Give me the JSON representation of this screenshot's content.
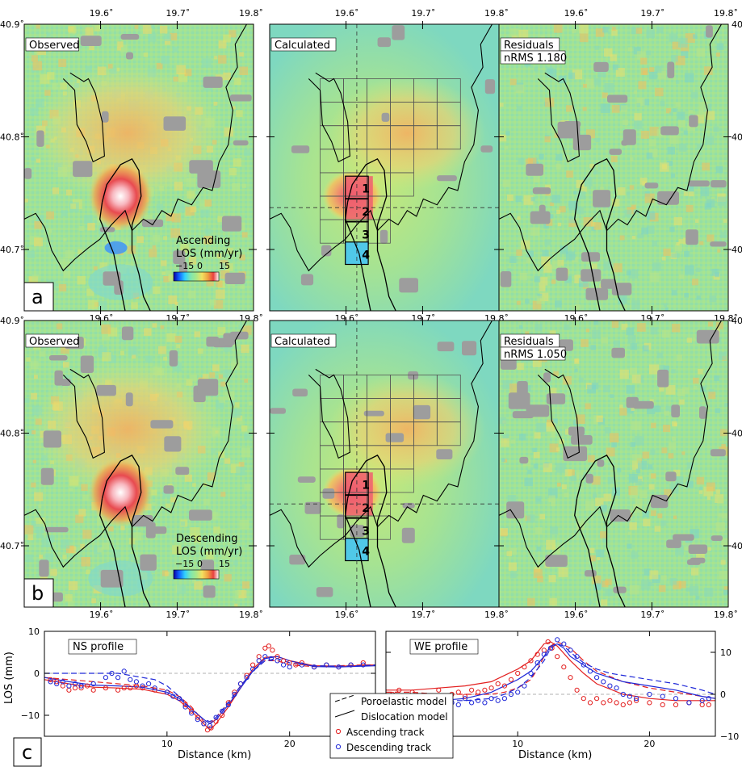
{
  "map_ticks": {
    "lon": [
      "19.6˚",
      "19.7˚",
      "19.8˚"
    ],
    "lat": [
      "40.9˚",
      "40.8˚",
      "40.7˚"
    ]
  },
  "rows": [
    {
      "letter": "a",
      "panels": [
        {
          "label": "Observed",
          "type": "observed"
        },
        {
          "label": "Calculated",
          "type": "calculated"
        },
        {
          "label": "Residuals",
          "sub": "nRMS 1.180",
          "type": "residuals"
        }
      ],
      "colorbar": {
        "title1": "Ascending",
        "title2": "LOS (mm/yr)",
        "ticks": [
          "−15",
          "0",
          "15"
        ]
      }
    },
    {
      "letter": "b",
      "panels": [
        {
          "label": "Observed",
          "type": "observed"
        },
        {
          "label": "Calculated",
          "type": "calculated"
        },
        {
          "label": "Residuals",
          "sub": "nRMS 1.050",
          "type": "residuals"
        }
      ],
      "colorbar": {
        "title1": "Descending",
        "title2": "LOS (mm/yr)",
        "ticks": [
          "−15",
          "0",
          "15"
        ]
      }
    }
  ],
  "source_numbers": [
    "1",
    "2",
    "3",
    "4"
  ],
  "colors": {
    "gray_mask": "#9d9d9d",
    "background": "#9fe29a",
    "ascending": "#e32020",
    "descending": "#1f28d8"
  },
  "chart_data": [
    {
      "type": "line",
      "letter": "c",
      "title": "NS profile",
      "xlabel": "Distance (km)",
      "ylabel": "LOS (mm)",
      "xlim": [
        0,
        27
      ],
      "ylim": [
        10,
        -15
      ],
      "x_ticks": [
        "10",
        "20"
      ],
      "y_ticks": [
        "10",
        "0",
        "−10"
      ],
      "x_tick_values": [
        10,
        20
      ],
      "y_tick_values": [
        10,
        0,
        -10
      ],
      "series": [
        {
          "name": "Poroelastic model",
          "track": "ascending",
          "style": "dashed",
          "x": [
            0,
            2,
            4,
            6,
            8,
            10,
            11,
            12,
            13,
            13.5,
            14,
            15,
            16,
            17,
            18,
            19,
            20,
            22,
            24,
            26,
            27
          ],
          "y": [
            -1,
            -1.5,
            -2,
            -2.5,
            -3,
            -4,
            -5.5,
            -8,
            -11.5,
            -12,
            -10.5,
            -7,
            -3,
            0.5,
            3,
            3,
            2,
            1.6,
            1.8,
            2,
            2
          ]
        },
        {
          "name": "Dislocation model",
          "track": "ascending",
          "style": "solid",
          "x": [
            0,
            2,
            4,
            6,
            8,
            10,
            11,
            12,
            13,
            13.5,
            14,
            15,
            16,
            17,
            18,
            19,
            20,
            22,
            24,
            26,
            27
          ],
          "y": [
            -1.5,
            -2.5,
            -3.3,
            -3.5,
            -3.8,
            -5,
            -6.5,
            -9,
            -12,
            -13.5,
            -12,
            -8,
            -3.5,
            1,
            3.8,
            4,
            3,
            1.8,
            1.7,
            1.9,
            2
          ]
        },
        {
          "name": "Poroelastic model",
          "track": "descending",
          "style": "dashed",
          "x": [
            0,
            2,
            4,
            6,
            8,
            9,
            10,
            11,
            12,
            13,
            13.5,
            14,
            15,
            16,
            17,
            18,
            19,
            20,
            22,
            24,
            26,
            27
          ],
          "y": [
            0,
            0,
            0,
            0,
            -1,
            -1.5,
            -3,
            -5.5,
            -8.5,
            -11,
            -11.5,
            -10.5,
            -7,
            -3,
            0.5,
            3,
            3.5,
            2.5,
            1.8,
            1.7,
            1.8,
            2
          ]
        },
        {
          "name": "Dislocation model",
          "track": "descending",
          "style": "solid",
          "x": [
            0,
            2,
            4,
            6,
            8,
            10,
            11,
            12,
            13,
            13.5,
            14,
            15,
            16,
            17,
            18,
            19,
            20,
            22,
            24,
            26,
            27
          ],
          "y": [
            -1,
            -2,
            -2.8,
            -3,
            -3.3,
            -4.5,
            -6,
            -8.5,
            -11,
            -12,
            -11,
            -7.5,
            -3.5,
            0.5,
            3.5,
            4,
            3,
            1.6,
            1.5,
            1.7,
            1.8
          ]
        },
        {
          "name": "Ascending track",
          "track": "ascending",
          "style": "points",
          "x": [
            0.5,
            1,
            1.5,
            2,
            2.5,
            3,
            3.5,
            4,
            5,
            6,
            6.5,
            7,
            7.5,
            8,
            9,
            10,
            11,
            11.5,
            12,
            12.5,
            13,
            13.3,
            13.6,
            14,
            14.5,
            15,
            15.5,
            16,
            16.5,
            17,
            17.5,
            18,
            18.3,
            18.6,
            19,
            19.5,
            20,
            20.5,
            21,
            22,
            23,
            24,
            25,
            26
          ],
          "y": [
            -1.5,
            -2,
            -3,
            -4,
            -3.5,
            -3.5,
            -3,
            -4,
            -3.5,
            -4,
            -3.5,
            -3.5,
            -3,
            -3.5,
            -4,
            -4.5,
            -6,
            -7.5,
            -9,
            -10.5,
            -12,
            -13.5,
            -13,
            -11.5,
            -10,
            -7,
            -4.5,
            -2.5,
            -0.5,
            2,
            4,
            6,
            6.5,
            5.5,
            4,
            3,
            2.5,
            2,
            2.5,
            1.5,
            2,
            1.5,
            2,
            2.5
          ]
        },
        {
          "name": "Descending track",
          "track": "descending",
          "style": "points",
          "x": [
            0.5,
            1,
            1.5,
            2,
            2.5,
            3,
            4,
            5,
            5.5,
            6,
            6.5,
            7,
            7.5,
            8,
            8.5,
            9,
            10,
            10.5,
            11,
            11.5,
            12,
            12.5,
            13,
            13.5,
            14,
            14.5,
            15,
            15.5,
            16,
            16.5,
            17,
            17.5,
            18,
            18.5,
            19,
            19.5,
            20,
            21,
            22,
            23,
            24,
            25,
            26
          ],
          "y": [
            -2,
            -2.5,
            -2,
            -3,
            -2.5,
            -3,
            -2.5,
            -1,
            0,
            -1,
            0.5,
            -1.5,
            -2,
            -3,
            -2.5,
            -3.5,
            -4.5,
            -5.5,
            -6,
            -8,
            -9.5,
            -11,
            -12,
            -12.5,
            -10.5,
            -9,
            -7.5,
            -5,
            -2.5,
            -1,
            1,
            3,
            4,
            3.5,
            3,
            2,
            1.5,
            2,
            1.5,
            2,
            1.5,
            2,
            2
          ]
        }
      ]
    },
    {
      "type": "line",
      "title": "WE profile",
      "xlabel": "Distance (km)",
      "ylabel": "",
      "xlim": [
        0,
        25
      ],
      "ylim": [
        15,
        -10
      ],
      "x_ticks": [
        "10",
        "20"
      ],
      "y_ticks": [
        "−10",
        "0",
        "10"
      ],
      "x_tick_values": [
        10,
        20
      ],
      "y_tick_values": [
        -10,
        0,
        10
      ],
      "series": [
        {
          "name": "Poroelastic model",
          "track": "ascending",
          "style": "dashed",
          "x": [
            0,
            2,
            4,
            6,
            8,
            9,
            10,
            11,
            11.5,
            12,
            12.5,
            13,
            14,
            15,
            16,
            18,
            20,
            22,
            24,
            25
          ],
          "y": [
            0.5,
            0.5,
            0,
            0,
            0,
            0.5,
            1.5,
            3.5,
            6,
            9,
            11.5,
            12.5,
            11,
            8,
            5.5,
            3,
            1.5,
            0.5,
            -0.5,
            -1
          ]
        },
        {
          "name": "Dislocation model",
          "track": "ascending",
          "style": "solid",
          "x": [
            0,
            2,
            4,
            6,
            8,
            9,
            10,
            11,
            11.5,
            12,
            12.5,
            13,
            14,
            15,
            16,
            18,
            20,
            22,
            24,
            25
          ],
          "y": [
            1,
            1,
            1.5,
            2,
            3,
            4.5,
            6,
            8,
            10,
            12,
            12.5,
            11.5,
            8,
            5,
            2.5,
            0,
            -1,
            -1.5,
            -1.5,
            -1.5
          ]
        },
        {
          "name": "Poroelastic model",
          "track": "descending",
          "style": "dashed",
          "x": [
            0,
            2,
            4,
            6,
            8,
            9,
            10,
            11,
            12,
            12.5,
            13,
            13.5,
            14,
            15,
            16,
            17,
            18,
            20,
            22,
            24,
            25
          ],
          "y": [
            -1,
            -1,
            -1.5,
            -1.5,
            -1,
            0,
            1.5,
            4,
            8,
            11,
            12,
            11.5,
            10,
            7.5,
            6,
            5,
            4.5,
            3.5,
            2.5,
            1,
            0
          ]
        },
        {
          "name": "Dislocation model",
          "track": "descending",
          "style": "solid",
          "x": [
            0,
            2,
            4,
            6,
            8,
            9,
            10,
            11,
            12,
            12.5,
            13,
            13.5,
            14,
            15,
            16,
            17,
            18,
            20,
            22,
            24,
            25
          ],
          "y": [
            -1.5,
            -1.5,
            -1.5,
            -1,
            0.5,
            2,
            3.5,
            5.5,
            9,
            11.5,
            12,
            11,
            9,
            7,
            5,
            4,
            3,
            2,
            1,
            -0.5,
            -1
          ]
        },
        {
          "name": "Ascending track",
          "track": "ascending",
          "style": "points",
          "x": [
            0.5,
            1,
            2,
            3,
            4,
            5,
            5.5,
            6,
            6.5,
            7,
            7.5,
            8,
            8.5,
            9,
            9.5,
            10,
            10.5,
            11,
            11.5,
            12,
            12.3,
            12.6,
            13,
            13.5,
            14,
            14.5,
            15,
            15.5,
            16,
            16.5,
            17,
            17.5,
            18,
            18.5,
            19,
            20,
            21,
            22,
            23,
            24,
            24.5
          ],
          "y": [
            0,
            1,
            0.5,
            -0.5,
            1,
            0,
            0.5,
            -0.5,
            1,
            0.5,
            1,
            1.5,
            2.5,
            2,
            3.5,
            5,
            6.5,
            8,
            9.5,
            10.5,
            12.5,
            11,
            9,
            6.5,
            4,
            1,
            -1,
            -2,
            -1,
            -2,
            -1.5,
            -2,
            -2.5,
            -2,
            -1.5,
            -2,
            -2.5,
            -2.5,
            -2,
            -2.5,
            -2.5
          ]
        },
        {
          "name": "Descending track",
          "track": "descending",
          "style": "points",
          "x": [
            0.5,
            1,
            1.5,
            2,
            2.5,
            3,
            3.5,
            4,
            4.5,
            5,
            5.5,
            6,
            6.5,
            7,
            7.5,
            8,
            8.5,
            9,
            9.5,
            10,
            10.5,
            11,
            11.5,
            12,
            12.5,
            13,
            13.5,
            14,
            14.5,
            15,
            15.5,
            16,
            16.5,
            17,
            17.5,
            18,
            18.5,
            19,
            20,
            21,
            22,
            23,
            24,
            24.5
          ],
          "y": [
            -1.5,
            -2,
            -1,
            -2.5,
            -2,
            -1.5,
            -2,
            -2.5,
            -1.5,
            -2,
            -2.5,
            -1,
            -2,
            -1.5,
            -2,
            -1,
            -1.5,
            -1,
            0,
            0.5,
            2,
            5,
            7.5,
            9.5,
            11,
            13,
            12,
            10.5,
            9,
            7,
            5.5,
            4,
            3,
            2,
            1.5,
            0,
            -0.5,
            -1,
            0,
            -0.5,
            -1,
            -2,
            -1.5,
            -1
          ]
        }
      ]
    }
  ],
  "legend": {
    "items": [
      {
        "label": "Poroelastic model",
        "kind": "dashed"
      },
      {
        "label": "Dislocation model",
        "kind": "solid"
      },
      {
        "label": "Ascending track",
        "kind": "asc-point"
      },
      {
        "label": "Descending track",
        "kind": "desc-point"
      }
    ]
  }
}
